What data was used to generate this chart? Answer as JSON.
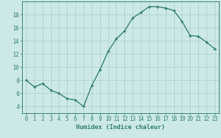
{
  "x": [
    0,
    1,
    2,
    3,
    4,
    5,
    6,
    7,
    8,
    9,
    10,
    11,
    12,
    13,
    14,
    15,
    16,
    17,
    18,
    19,
    20,
    21,
    22,
    23
  ],
  "y": [
    8,
    7,
    7.5,
    6.5,
    6,
    5.2,
    5,
    4,
    7.2,
    9.6,
    12.4,
    14.3,
    15.5,
    17.5,
    18.3,
    19.2,
    19.2,
    19.0,
    18.6,
    17.0,
    14.8,
    14.7,
    13.8,
    12.8
  ],
  "line_color": "#2e7d6e",
  "marker_color": "#2e7d6e",
  "bg_color": "#cce8e8",
  "grid_color": "#b0d0d0",
  "axis_color": "#2e7d6e",
  "xlabel": "Humidex (Indice chaleur)",
  "xlabel_fontsize": 6.5,
  "xlim": [
    -0.5,
    23.5
  ],
  "ylim": [
    3,
    20
  ],
  "yticks": [
    4,
    6,
    8,
    10,
    12,
    14,
    16,
    18
  ],
  "xticks": [
    0,
    1,
    2,
    3,
    4,
    5,
    6,
    7,
    8,
    9,
    10,
    11,
    12,
    13,
    14,
    15,
    16,
    17,
    18,
    19,
    20,
    21,
    22,
    23
  ],
  "tick_fontsize": 5.5,
  "marker_size": 2.5,
  "line_width": 1.0
}
